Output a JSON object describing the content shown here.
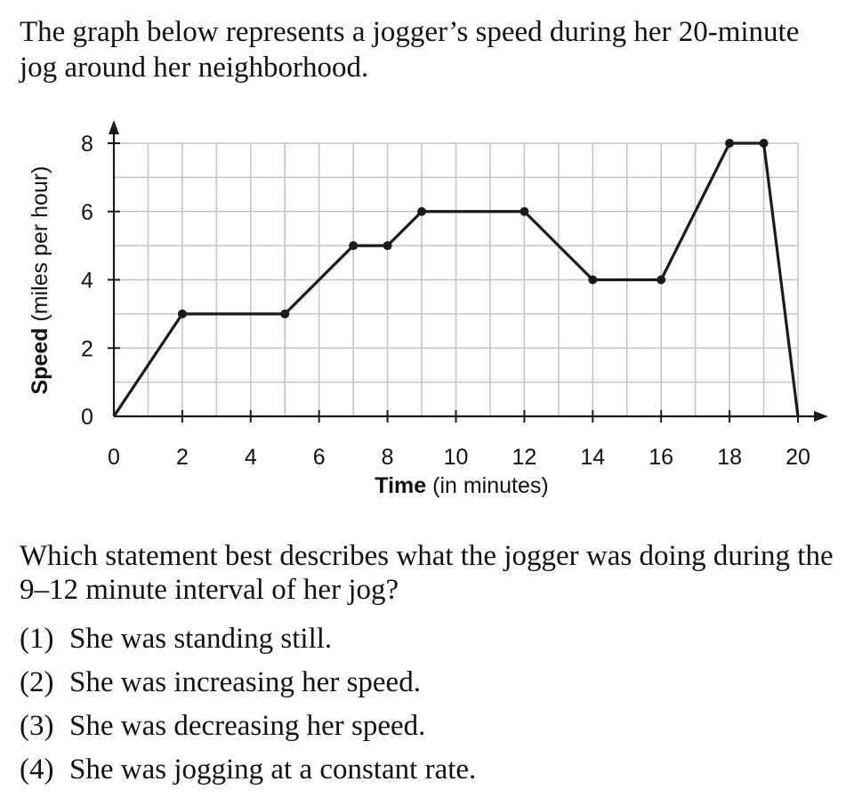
{
  "intro_text": "The graph below represents a jogger’s speed during her 20-minute jog around her neighborhood.",
  "question_text": "Which statement best describes what the jogger was doing during the 9–12 minute interval of her jog?",
  "choices": [
    {
      "num": "(1)",
      "text": "She was standing still."
    },
    {
      "num": "(2)",
      "text": "She was increasing her speed."
    },
    {
      "num": "(3)",
      "text": "She was decreasing her speed."
    },
    {
      "num": "(4)",
      "text": "She was jogging at a constant rate."
    }
  ],
  "chart_data": {
    "type": "line",
    "title": "",
    "xlabel_bold": "Time",
    "xlabel_rest": " (in minutes)",
    "ylabel_bold": "Speed",
    "ylabel_rest": " (miles per hour)",
    "xlim": [
      0,
      20
    ],
    "ylim": [
      0,
      8
    ],
    "grid": true,
    "x_ticks": [
      "0",
      "2",
      "4",
      "6",
      "8",
      "10",
      "12",
      "14",
      "16",
      "18",
      "20"
    ],
    "y_ticks": [
      "0",
      "2",
      "4",
      "6",
      "8"
    ],
    "x": [
      0,
      2,
      5,
      7,
      8,
      9,
      12,
      14,
      16,
      18,
      19,
      20
    ],
    "y": [
      0,
      3,
      3,
      5,
      5,
      6,
      6,
      4,
      4,
      8,
      8,
      0
    ],
    "colors": {
      "line": "#1a1a1a",
      "grid": "#c4c4c4",
      "axis": "#1a1a1a"
    }
  }
}
